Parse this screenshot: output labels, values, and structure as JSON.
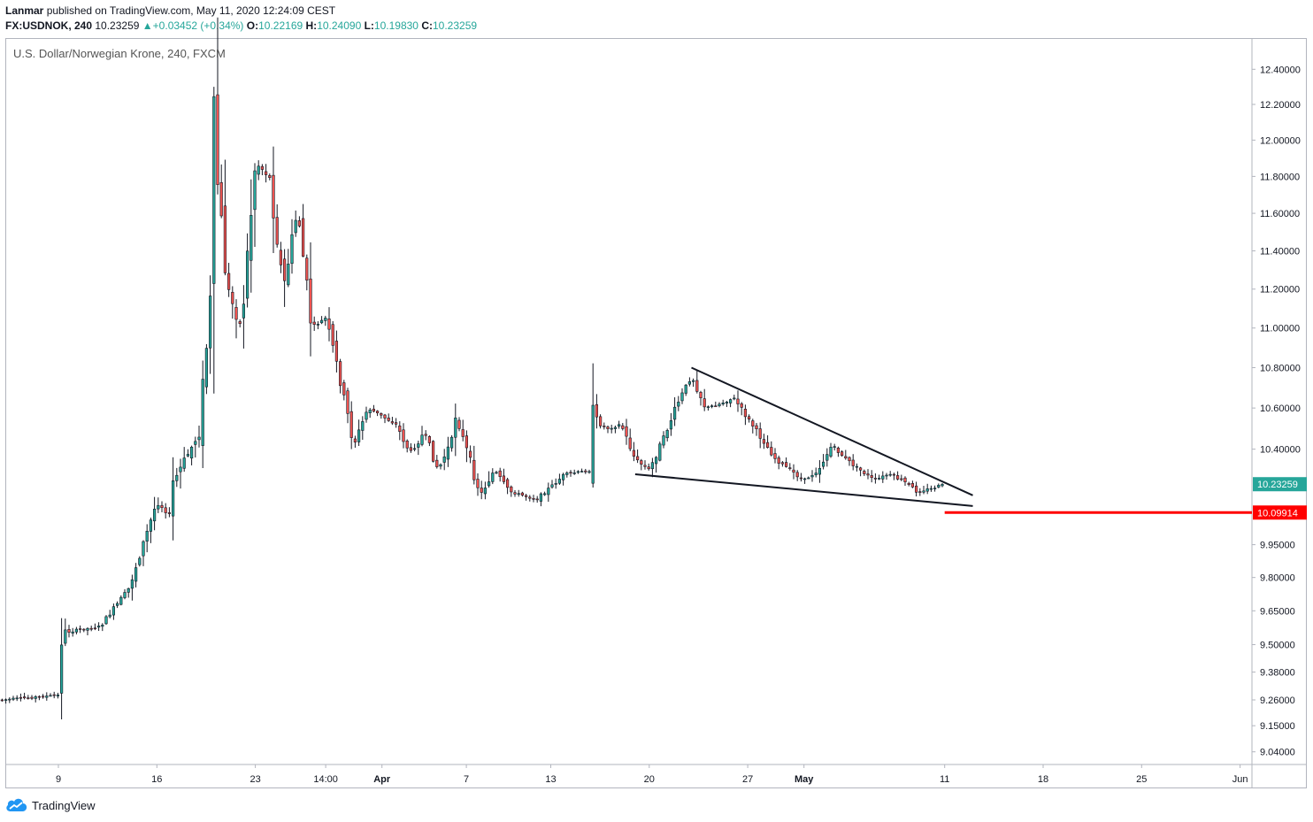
{
  "header": {
    "publisher": "Lanmar",
    "published_text": "published on TradingView.com, May 11, 2020 12:24:09 CEST",
    "symbol": "FX:USDNOK, 240",
    "last": "10.23259",
    "change_arrow": "▲",
    "change": "+0.03452 (+0.34%)",
    "o_label": "O:",
    "o_value": "10.22169",
    "h_label": "H:",
    "h_value": "10.24090",
    "l_label": "L:",
    "l_value": "10.19830",
    "c_label": "C:",
    "c_value": "10.23259"
  },
  "chart_title": "U.S. Dollar/Norwegian Krone, 240, FXCM",
  "logo_text": "TradingView",
  "colors": {
    "up": "#26a69a",
    "down": "#ef5350",
    "trendline": "#131722",
    "support": "#ff0000",
    "price_tag": "#26a69a"
  },
  "chart_data": {
    "type": "candlestick",
    "title": "U.S. Dollar/Norwegian Krone, 240, FXCM",
    "y_axis": {
      "labels": [
        "12.40000",
        "12.20000",
        "12.00000",
        "11.80000",
        "11.60000",
        "11.40000",
        "11.20000",
        "11.00000",
        "10.80000",
        "10.60000",
        "10.40000",
        "9.95000",
        "9.80000",
        "9.65000",
        "9.50000",
        "9.38000",
        "9.26000",
        "9.15000",
        "9.04000"
      ],
      "scale": "log",
      "position": "right"
    },
    "x_axis": {
      "labels": [
        "9",
        "16",
        "23",
        "14:00",
        "Apr",
        "7",
        "13",
        "20",
        "27",
        "May",
        "11",
        "18",
        "25",
        "Jun"
      ],
      "bold_labels": [
        "Apr",
        "May"
      ]
    },
    "series_path": [
      {
        "date": "2020-03-05",
        "price": 9.26
      },
      {
        "date": "2020-03-09",
        "price": 9.28
      },
      {
        "date": "2020-03-09",
        "price": 9.55
      },
      {
        "date": "2020-03-12",
        "price": 9.58
      },
      {
        "date": "2020-03-14",
        "price": 9.75
      },
      {
        "date": "2020-03-16",
        "price": 10.15
      },
      {
        "date": "2020-03-17",
        "price": 10.08
      },
      {
        "date": "2020-03-17",
        "price": 10.22
      },
      {
        "date": "2020-03-19",
        "price": 10.48
      },
      {
        "date": "2020-03-20",
        "price": 11.3
      },
      {
        "date": "2020-03-20",
        "price": 12.05
      },
      {
        "date": "2020-03-21",
        "price": 11.2
      },
      {
        "date": "2020-03-22",
        "price": 11.0
      },
      {
        "date": "2020-03-23",
        "price": 11.88
      },
      {
        "date": "2020-03-24",
        "price": 11.8
      },
      {
        "date": "2020-03-25",
        "price": 11.2
      },
      {
        "date": "2020-03-26",
        "price": 11.62
      },
      {
        "date": "2020-03-27",
        "price": 11.0
      },
      {
        "date": "2020-03-28",
        "price": 11.05
      },
      {
        "date": "2020-03-29",
        "price": 10.75
      },
      {
        "date": "2020-03-30",
        "price": 10.42
      },
      {
        "date": "2020-03-31",
        "price": 10.6
      },
      {
        "date": "2020-04-02",
        "price": 10.52
      },
      {
        "date": "2020-04-03",
        "price": 10.38
      },
      {
        "date": "2020-04-04",
        "price": 10.48
      },
      {
        "date": "2020-04-05",
        "price": 10.3
      },
      {
        "date": "2020-04-06",
        "price": 10.45
      },
      {
        "date": "2020-04-06",
        "price": 10.62
      },
      {
        "date": "2020-04-07",
        "price": 10.4
      },
      {
        "date": "2020-04-08",
        "price": 10.18
      },
      {
        "date": "2020-04-09",
        "price": 10.3
      },
      {
        "date": "2020-04-10",
        "price": 10.2
      },
      {
        "date": "2020-04-12",
        "price": 10.16
      },
      {
        "date": "2020-04-13",
        "price": 10.22
      },
      {
        "date": "2020-04-14",
        "price": 10.28
      },
      {
        "date": "2020-04-16",
        "price": 10.3
      },
      {
        "date": "2020-04-16",
        "price": 10.55
      },
      {
        "date": "2020-04-17",
        "price": 10.5
      },
      {
        "date": "2020-04-18",
        "price": 10.52
      },
      {
        "date": "2020-04-19",
        "price": 10.35
      },
      {
        "date": "2020-04-20",
        "price": 10.3
      },
      {
        "date": "2020-04-21",
        "price": 10.45
      },
      {
        "date": "2020-04-22",
        "price": 10.62
      },
      {
        "date": "2020-04-23",
        "price": 10.76
      },
      {
        "date": "2020-04-24",
        "price": 10.6
      },
      {
        "date": "2020-04-25",
        "price": 10.62
      },
      {
        "date": "2020-04-26",
        "price": 10.65
      },
      {
        "date": "2020-04-27",
        "price": 10.55
      },
      {
        "date": "2020-04-28",
        "price": 10.45
      },
      {
        "date": "2020-04-29",
        "price": 10.35
      },
      {
        "date": "2020-04-30",
        "price": 10.3
      },
      {
        "date": "2020-05-01",
        "price": 10.25
      },
      {
        "date": "2020-05-02",
        "price": 10.3
      },
      {
        "date": "2020-05-03",
        "price": 10.42
      },
      {
        "date": "2020-05-04",
        "price": 10.35
      },
      {
        "date": "2020-05-05",
        "price": 10.3
      },
      {
        "date": "2020-05-06",
        "price": 10.25
      },
      {
        "date": "2020-05-07",
        "price": 10.28
      },
      {
        "date": "2020-05-08",
        "price": 10.25
      },
      {
        "date": "2020-05-09",
        "price": 10.2
      },
      {
        "date": "2020-05-10",
        "price": 10.21
      },
      {
        "date": "2020-05-11",
        "price": 10.23259
      }
    ],
    "trendlines": [
      {
        "name": "upper-trendline",
        "from": {
          "date": "2020-04-23",
          "price": 10.8
        },
        "to": {
          "date": "2020-05-13",
          "price": 10.18
        }
      },
      {
        "name": "lower-trendline",
        "from": {
          "date": "2020-04-19",
          "price": 10.28
        },
        "to": {
          "date": "2020-05-13",
          "price": 10.13
        }
      }
    ],
    "horizontal_line": {
      "price": 10.09914,
      "label": "10.09914",
      "from_date": "2020-05-11"
    },
    "last_price": {
      "price": 10.23259,
      "label": "10.23259"
    },
    "grid": false
  }
}
